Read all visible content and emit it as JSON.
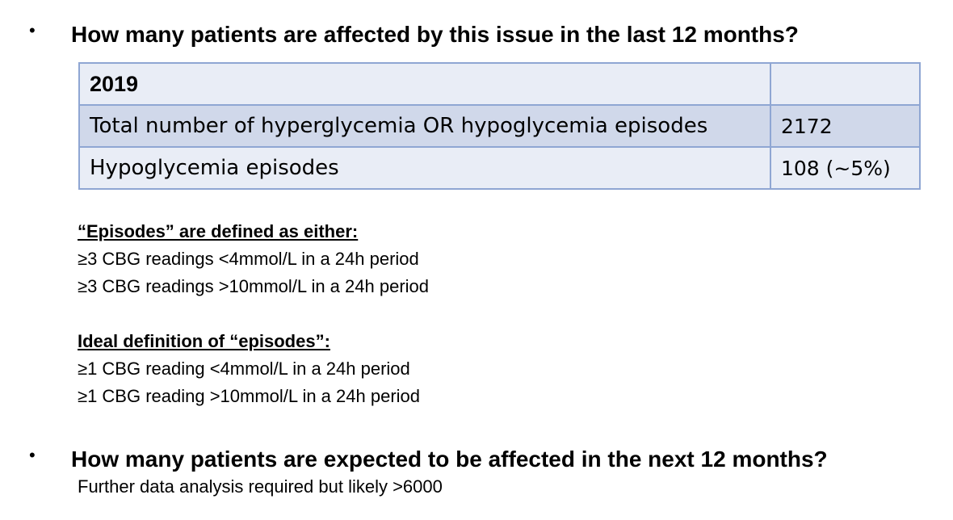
{
  "q1": {
    "bullet": "•",
    "text": "How many patients are affected by this issue in the last 12 months?"
  },
  "table": {
    "header": [
      "2019",
      ""
    ],
    "rows": [
      [
        "Total number of hyperglycemia OR hypoglycemia episodes",
        "2172"
      ],
      [
        "Hypoglycemia episodes",
        "108 (~5%)"
      ]
    ]
  },
  "definitions": {
    "heading": "“Episodes” are defined as either:",
    "items": [
      "≥3 CBG readings <4mmol/L in a 24h period",
      "≥3 CBG readings >10mmol/L in a 24h period"
    ]
  },
  "ideal": {
    "heading": "Ideal definition of “episodes”:",
    "items": [
      "≥1 CBG reading <4mmol/L in a 24h period",
      "≥1 CBG reading >10mmol/L in a 24h period"
    ]
  },
  "q2": {
    "bullet": "•",
    "text": "How many patients are expected to be affected in the next 12 months?",
    "answer": "Further data analysis required but likely >6000"
  },
  "colors": {
    "table_border": "#8fa6d3",
    "row_light": "#e9edf6",
    "row_dark": "#d0d8ea"
  }
}
